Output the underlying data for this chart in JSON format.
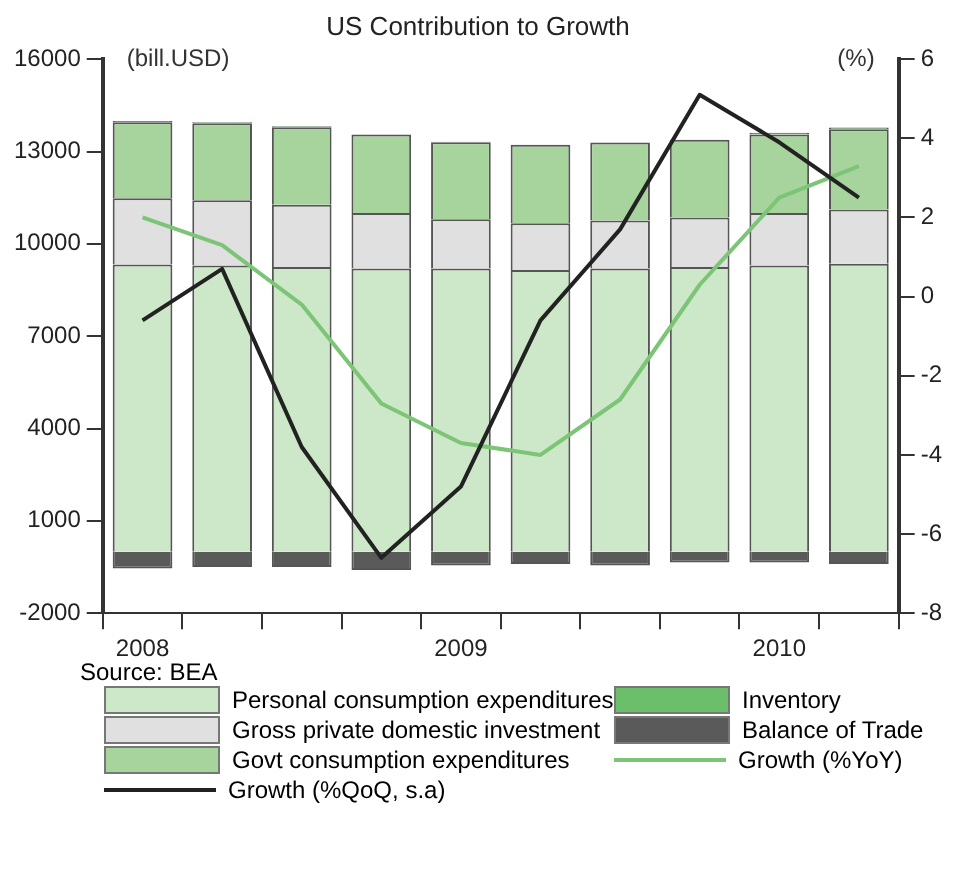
{
  "chart_data": {
    "type": "bar",
    "title": "US Contribution to Growth",
    "ylabel": "(bill.USD)",
    "y2label": "(%)",
    "categories": [
      "2008",
      null,
      null,
      null,
      "2009",
      null,
      null,
      null,
      "2010",
      null
    ],
    "stacked": true,
    "series": [
      {
        "name": "Personal consumption expenditures",
        "color": "#cde8c8",
        "values": [
          9330,
          9300,
          9250,
          9200,
          9200,
          9150,
          9200,
          9250,
          9300,
          9350
        ]
      },
      {
        "name": "Gross private domestic investment",
        "color": "#e0e0e0",
        "values": [
          2150,
          2120,
          2020,
          1800,
          1600,
          1520,
          1560,
          1610,
          1700,
          1770
        ]
      },
      {
        "name": "Govt consumption expenditures",
        "color": "#a6d49c",
        "values": [
          2470,
          2500,
          2520,
          2550,
          2500,
          2550,
          2530,
          2520,
          2550,
          2600
        ]
      },
      {
        "name": "Growth (%QoQ, s.a)",
        "type": "line",
        "axis": "y2",
        "color": "#222222",
        "values": [
          -0.6,
          0.7,
          -3.8,
          -6.6,
          -4.8,
          -0.6,
          1.7,
          5.1,
          3.9,
          2.5
        ]
      },
      {
        "name": "Inventory",
        "color": "#6cbf6a",
        "values": [
          40,
          30,
          30,
          null,
          20,
          null,
          null,
          null,
          60,
          60
        ]
      },
      {
        "name": "Balance of Trade",
        "color": "#5a5a5a",
        "values": [
          -550,
          -500,
          -500,
          -600,
          -450,
          -400,
          -450,
          -350,
          -350,
          -400
        ]
      },
      {
        "name": "Growth (%YoY)",
        "type": "line",
        "axis": "y2",
        "color": "#7cc576",
        "values": [
          2.0,
          1.3,
          -0.2,
          -2.7,
          -3.7,
          -4.0,
          -2.6,
          0.3,
          2.5,
          3.3
        ]
      }
    ],
    "ylim": [
      -2000,
      16000
    ],
    "yticks": [
      -2000,
      1000,
      4000,
      7000,
      10000,
      13000,
      16000
    ],
    "y2lim": [
      -8,
      6
    ],
    "y2ticks": [
      -8,
      -6,
      -4,
      -2,
      0,
      2,
      4,
      6
    ],
    "grid": false,
    "legend": "bottom",
    "marker": "none",
    "annotations": [
      "Source: BEA"
    ]
  }
}
